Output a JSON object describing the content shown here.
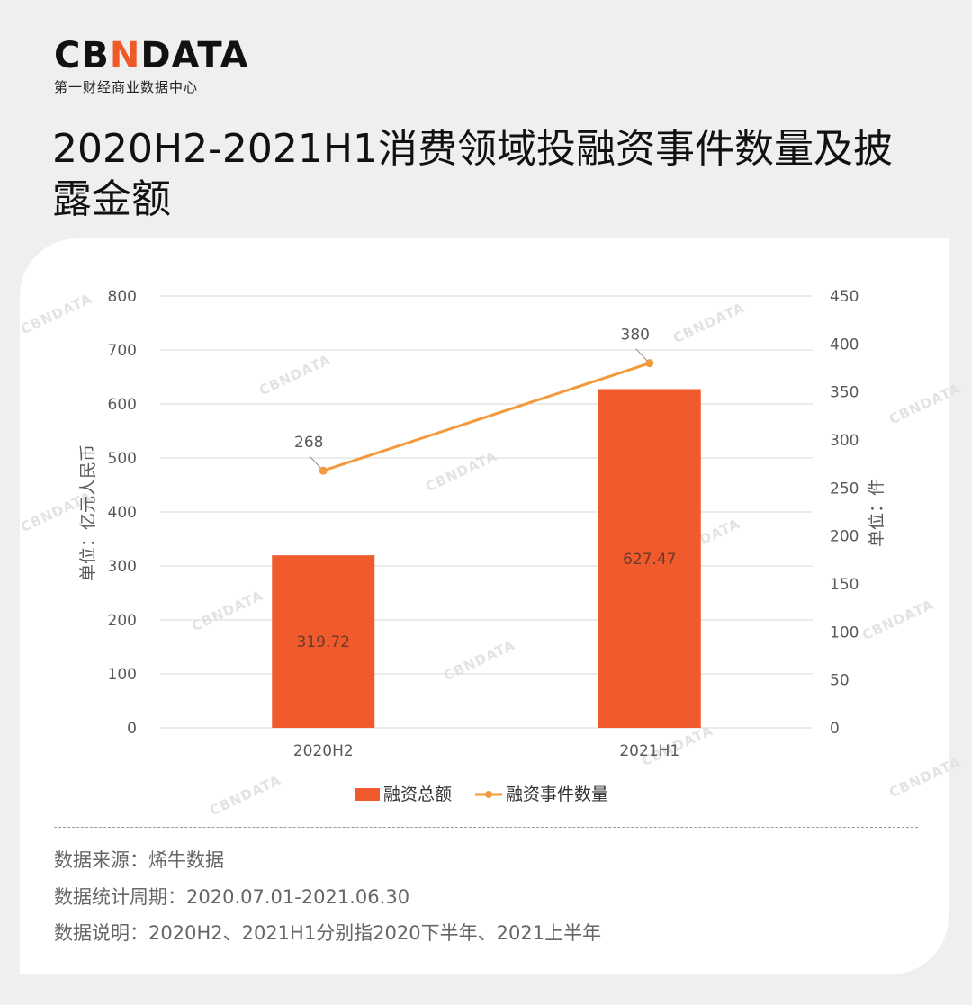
{
  "brand": {
    "logo_pre": "CB",
    "logo_accent": "N",
    "logo_post": "DATA",
    "subtitle": "第一财经商业数据中心"
  },
  "title": "2020H2-2021H1消费领域投融资事件数量及披露金额",
  "watermark": "CBNDATA",
  "chart_data": {
    "type": "bar",
    "categories": [
      "2020H2",
      "2021H1"
    ],
    "series": [
      {
        "name": "融资总额",
        "type": "bar",
        "axis": "left",
        "values": [
          319.72,
          627.47
        ],
        "labels": [
          "319.72",
          "627.47"
        ],
        "color": "#f05a2d"
      },
      {
        "name": "融资事件数量",
        "type": "line",
        "axis": "right",
        "values": [
          268,
          380
        ],
        "labels": [
          "268",
          "380"
        ],
        "color": "#f39a3c"
      }
    ],
    "ylabel": "单位：亿元人民币",
    "y2label": "单位：件",
    "ylim": [
      0,
      800
    ],
    "y2lim": [
      0,
      450
    ],
    "yticks": [
      "0",
      "100",
      "200",
      "300",
      "400",
      "500",
      "600",
      "700",
      "800"
    ],
    "y2ticks": [
      "0",
      "50",
      "100",
      "150",
      "200",
      "250",
      "300",
      "350",
      "400",
      "450"
    ],
    "grid": true,
    "legend": "bottom"
  },
  "footer": {
    "source": "数据来源：烯牛数据",
    "period": "数据统计周期：2020.07.01-2021.06.30",
    "note": "数据说明：2020H2、2021H1分别指2020下半年、2021上半年"
  }
}
